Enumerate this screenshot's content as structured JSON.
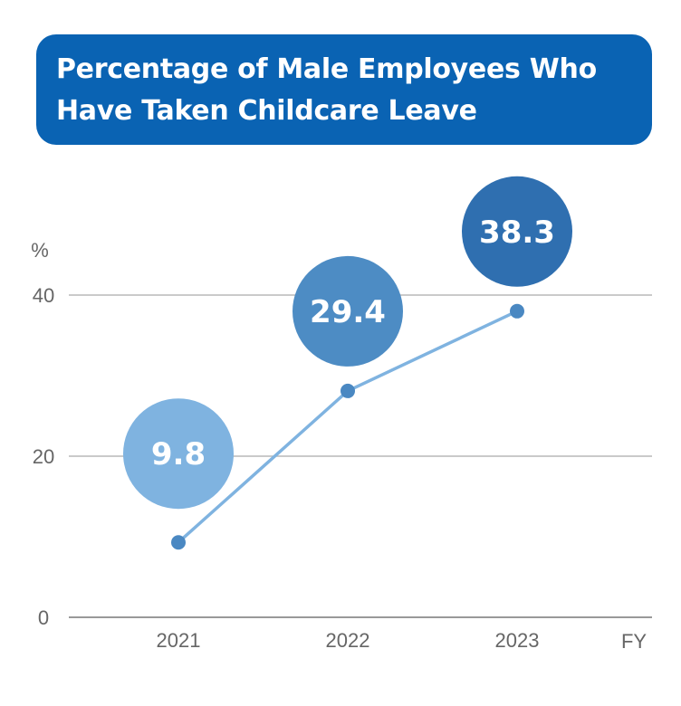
{
  "title": "Percentage of Male Employees Who\nHave Taken Childcare Leave",
  "chart_data": {
    "type": "line",
    "title": "Percentage of Male Employees Who Have Taken Childcare Leave",
    "ylabel": "%",
    "xlabel": "FY",
    "categories": [
      "2021",
      "2022",
      "2023"
    ],
    "values": [
      9.8,
      29.4,
      38.3
    ],
    "point_positions": [
      9.3,
      28.1,
      38.0
    ],
    "value_labels": [
      "9.8",
      "29.4",
      "38.3"
    ],
    "ylim": [
      0,
      40
    ],
    "yticks": [
      "0",
      "20",
      "40"
    ],
    "grid": true,
    "colors": {
      "line": "#7fb3e0",
      "marker": "#4a88c2",
      "bubbles": [
        "#7fb3e0",
        "#4d8cc4",
        "#2f6fb0"
      ],
      "title_bg": "#0a63b3"
    }
  }
}
